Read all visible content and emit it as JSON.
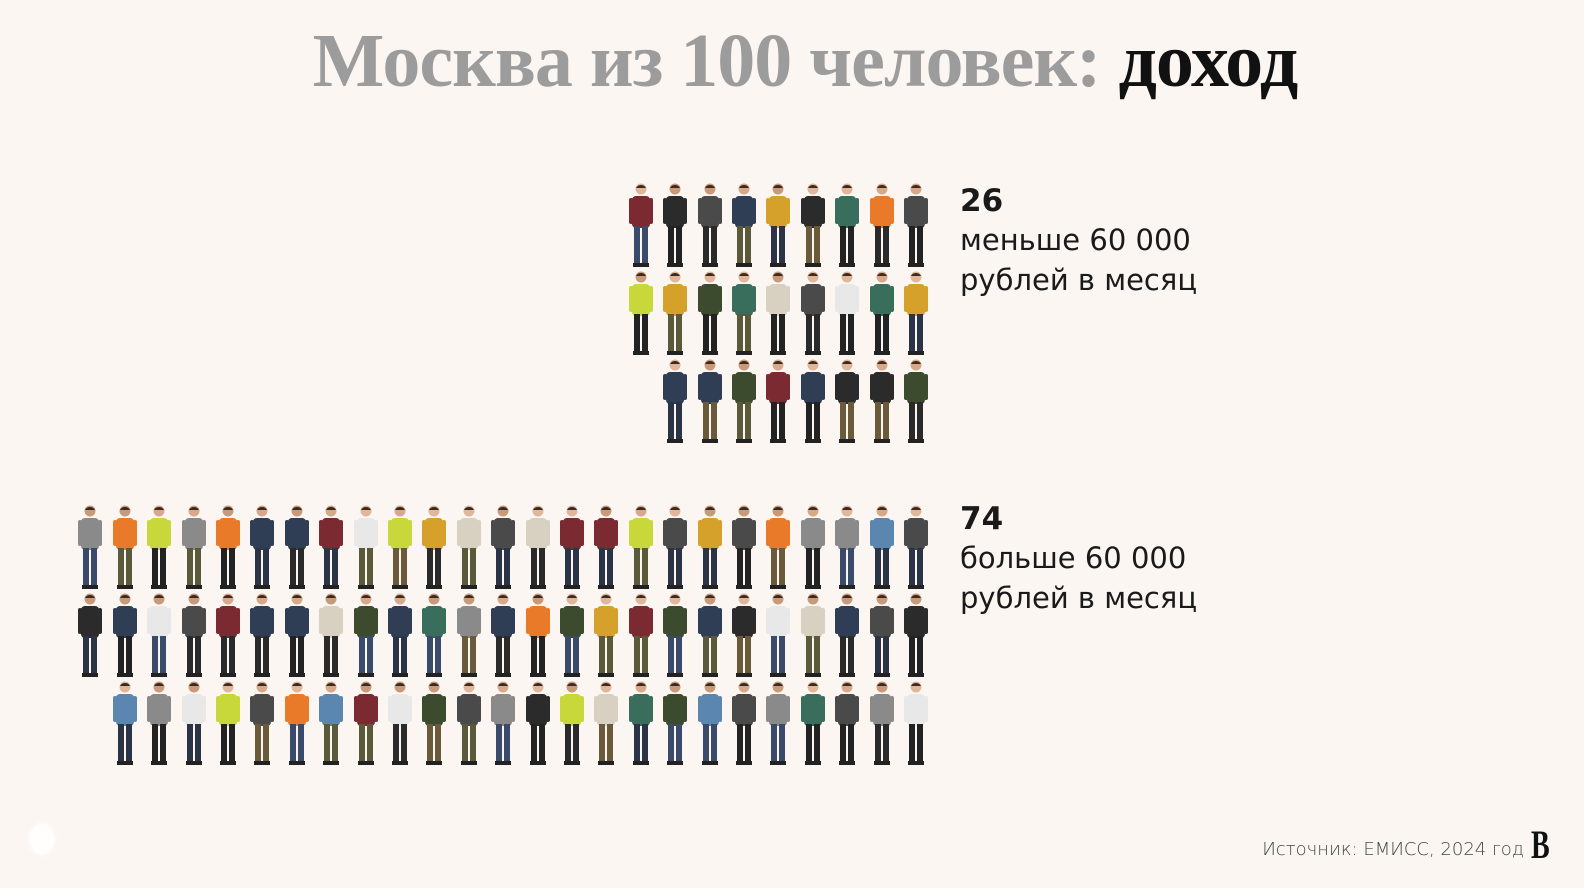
{
  "title": {
    "lead": "Москва из 100 человек:",
    "accent": "доход"
  },
  "groups": [
    {
      "count": "26",
      "line1": "меньше 60 000",
      "line2": "рублей в месяц"
    },
    {
      "count": "74",
      "line1": "больше 60 000",
      "line2": "рублей в месяц"
    }
  ],
  "footer": {
    "source": "Источник: ЕМИСС, 2024 год",
    "logo": "B"
  },
  "chart_data": {
    "type": "bar",
    "style": "pictogram (1 figure = 1 person)",
    "categories": [
      "меньше 60 000 рублей в месяц",
      "больше 60 000 рублей в месяц"
    ],
    "values": [
      26,
      74
    ],
    "title": "Москва из 100 человек: доход"
  }
}
